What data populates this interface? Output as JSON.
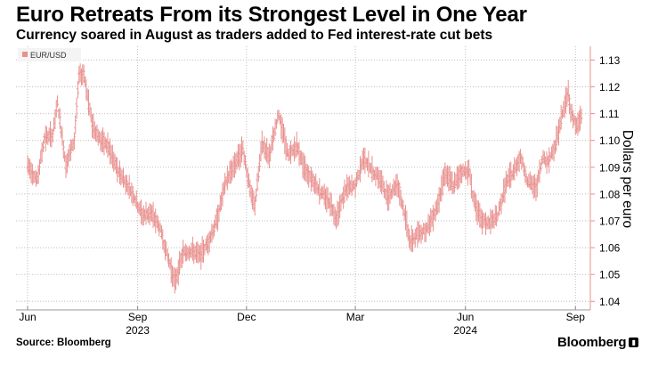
{
  "title": "Euro Retreats From its Strongest Level in One Year",
  "subtitle": "Currency soared in August as traders added to Fed interest-rate cut bets",
  "source": "Source: Bloomberg",
  "brand": "Bloomberg",
  "colors": {
    "series": "#e8908e",
    "grid": "#bdbdbd",
    "axis": "#e8908e",
    "text": "#000000",
    "tick_text": "#444444"
  },
  "chart_data": {
    "type": "line",
    "title": "Euro Retreats From its Strongest Level in One Year",
    "subtitle": "Currency soared in August as traders added to Fed interest-rate cut bets",
    "xlabel": "",
    "ylabel": "Dollars per euro",
    "ylim": [
      1.04,
      1.13
    ],
    "yticks": [
      1.04,
      1.05,
      1.06,
      1.07,
      1.08,
      1.09,
      1.1,
      1.11,
      1.12,
      1.13
    ],
    "ytick_labels": [
      "1.04",
      "1.05",
      "1.06",
      "1.07",
      "1.08",
      "1.09",
      "1.10",
      "1.11",
      "1.12",
      "1.13"
    ],
    "xlim": [
      "2023-06-01",
      "2024-09-06"
    ],
    "x_month_ticks": [
      {
        "date": "2023-06-01",
        "label": "Jun"
      },
      {
        "date": "2023-09-01",
        "label": "Sep"
      },
      {
        "date": "2023-12-01",
        "label": "Dec"
      },
      {
        "date": "2024-03-01",
        "label": "Mar"
      },
      {
        "date": "2024-06-01",
        "label": "Jun"
      },
      {
        "date": "2024-09-01",
        "label": "Sep"
      }
    ],
    "x_year_labels": [
      {
        "date": "2023-09-01",
        "label": "2023"
      },
      {
        "date": "2024-06-01",
        "label": "2024"
      }
    ],
    "grid": true,
    "legend_position": "top-left",
    "series": [
      {
        "name": "EUR/USD",
        "points": [
          [
            "2023-06-01",
            1.091
          ],
          [
            "2023-06-09",
            1.085
          ],
          [
            "2023-06-15",
            1.101
          ],
          [
            "2023-06-22",
            1.102
          ],
          [
            "2023-06-26",
            1.114
          ],
          [
            "2023-07-03",
            1.091
          ],
          [
            "2023-07-10",
            1.1
          ],
          [
            "2023-07-14",
            1.124
          ],
          [
            "2023-07-18",
            1.125
          ],
          [
            "2023-07-25",
            1.106
          ],
          [
            "2023-08-01",
            1.1
          ],
          [
            "2023-08-07",
            1.098
          ],
          [
            "2023-08-14",
            1.09
          ],
          [
            "2023-08-21",
            1.085
          ],
          [
            "2023-08-28",
            1.08
          ],
          [
            "2023-09-05",
            1.072
          ],
          [
            "2023-09-12",
            1.073
          ],
          [
            "2023-09-19",
            1.068
          ],
          [
            "2023-09-26",
            1.057
          ],
          [
            "2023-10-02",
            1.047
          ],
          [
            "2023-10-09",
            1.058
          ],
          [
            "2023-10-16",
            1.059
          ],
          [
            "2023-10-23",
            1.057
          ],
          [
            "2023-10-30",
            1.062
          ],
          [
            "2023-11-06",
            1.07
          ],
          [
            "2023-11-14",
            1.085
          ],
          [
            "2023-11-21",
            1.091
          ],
          [
            "2023-11-28",
            1.097
          ],
          [
            "2023-12-05",
            1.079
          ],
          [
            "2023-12-08",
            1.076
          ],
          [
            "2023-12-14",
            1.099
          ],
          [
            "2023-12-20",
            1.094
          ],
          [
            "2023-12-28",
            1.11
          ],
          [
            "2024-01-05",
            1.094
          ],
          [
            "2024-01-12",
            1.098
          ],
          [
            "2024-01-19",
            1.089
          ],
          [
            "2024-01-26",
            1.085
          ],
          [
            "2024-02-02",
            1.08
          ],
          [
            "2024-02-09",
            1.077
          ],
          [
            "2024-02-14",
            1.071
          ],
          [
            "2024-02-22",
            1.082
          ],
          [
            "2024-03-01",
            1.083
          ],
          [
            "2024-03-08",
            1.094
          ],
          [
            "2024-03-14",
            1.089
          ],
          [
            "2024-03-21",
            1.086
          ],
          [
            "2024-03-28",
            1.079
          ],
          [
            "2024-04-05",
            1.084
          ],
          [
            "2024-04-11",
            1.073
          ],
          [
            "2024-04-16",
            1.062
          ],
          [
            "2024-04-22",
            1.065
          ],
          [
            "2024-04-30",
            1.067
          ],
          [
            "2024-05-08",
            1.075
          ],
          [
            "2024-05-15",
            1.088
          ],
          [
            "2024-05-22",
            1.083
          ],
          [
            "2024-05-28",
            1.088
          ],
          [
            "2024-06-04",
            1.089
          ],
          [
            "2024-06-07",
            1.08
          ],
          [
            "2024-06-11",
            1.074
          ],
          [
            "2024-06-14",
            1.07
          ],
          [
            "2024-06-21",
            1.069
          ],
          [
            "2024-06-28",
            1.072
          ],
          [
            "2024-07-05",
            1.084
          ],
          [
            "2024-07-12",
            1.089
          ],
          [
            "2024-07-17",
            1.094
          ],
          [
            "2024-07-23",
            1.085
          ],
          [
            "2024-07-30",
            1.082
          ],
          [
            "2024-08-05",
            1.094
          ],
          [
            "2024-08-09",
            1.092
          ],
          [
            "2024-08-15",
            1.098
          ],
          [
            "2024-08-20",
            1.108
          ],
          [
            "2024-08-26",
            1.118
          ],
          [
            "2024-08-28",
            1.111
          ],
          [
            "2024-09-02",
            1.105
          ],
          [
            "2024-09-06",
            1.109
          ]
        ]
      }
    ]
  }
}
